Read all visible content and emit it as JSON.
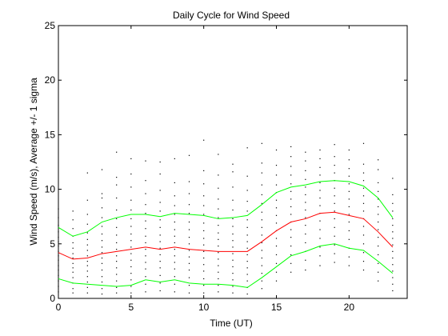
{
  "chart_data": {
    "type": "line",
    "title": "Daily Cycle for Wind Speed",
    "xlabel": "Time (UT)",
    "ylabel": "Wind Speed (m/s), Average +/- 1 sigma",
    "xlim": [
      0,
      24
    ],
    "ylim": [
      0,
      25
    ],
    "x_ticks": [
      0,
      5,
      10,
      15,
      20
    ],
    "y_ticks": [
      0,
      5,
      10,
      15,
      20,
      25
    ],
    "grid": false,
    "legend": "none",
    "x": [
      0,
      1,
      2,
      3,
      4,
      5,
      6,
      7,
      8,
      9,
      10,
      11,
      12,
      13,
      14,
      15,
      16,
      17,
      18,
      19,
      20,
      21,
      22,
      23
    ],
    "series": [
      {
        "role": "plus-1-sigma",
        "color": "#00ff00",
        "values": [
          6.5,
          5.7,
          6.1,
          7.0,
          7.4,
          7.7,
          7.7,
          7.5,
          7.8,
          7.7,
          7.6,
          7.3,
          7.4,
          7.6,
          8.6,
          9.7,
          10.2,
          10.4,
          10.7,
          10.8,
          10.7,
          10.3,
          9.2,
          7.4
        ]
      },
      {
        "role": "average",
        "color": "#ff0000",
        "values": [
          4.2,
          3.6,
          3.7,
          4.1,
          4.3,
          4.5,
          4.7,
          4.5,
          4.7,
          4.5,
          4.4,
          4.3,
          4.3,
          4.3,
          5.2,
          6.2,
          7.0,
          7.3,
          7.8,
          7.9,
          7.6,
          7.3,
          6.1,
          4.7
        ]
      },
      {
        "role": "minus-1-sigma",
        "color": "#00ff00",
        "values": [
          1.8,
          1.4,
          1.3,
          1.2,
          1.1,
          1.2,
          1.7,
          1.5,
          1.7,
          1.4,
          1.3,
          1.3,
          1.2,
          1.0,
          1.9,
          2.9,
          3.9,
          4.3,
          4.8,
          5.0,
          4.6,
          4.4,
          3.4,
          2.3
        ]
      }
    ],
    "scatter_color": "#000000",
    "scatter_points": [
      [
        0,
        0.6
      ],
      [
        0,
        1.1
      ],
      [
        0,
        1.6
      ],
      [
        0,
        2.1
      ],
      [
        0,
        2.6
      ],
      [
        0,
        3.0
      ],
      [
        0,
        3.5
      ],
      [
        0,
        3.9
      ],
      [
        0,
        4.3
      ],
      [
        0,
        4.8
      ],
      [
        0,
        5.2
      ],
      [
        0,
        5.6
      ],
      [
        0,
        6.1
      ],
      [
        0,
        6.7
      ],
      [
        0,
        7.4
      ],
      [
        0,
        8.2
      ],
      [
        1,
        0.5
      ],
      [
        1,
        0.9
      ],
      [
        1,
        1.4
      ],
      [
        1,
        1.9
      ],
      [
        1,
        2.4
      ],
      [
        1,
        2.8
      ],
      [
        1,
        3.2
      ],
      [
        1,
        3.7
      ],
      [
        1,
        4.1
      ],
      [
        1,
        4.6
      ],
      [
        1,
        5.1
      ],
      [
        1,
        5.7
      ],
      [
        1,
        6.4
      ],
      [
        1,
        7.2
      ],
      [
        1,
        8.0
      ],
      [
        2,
        0.5
      ],
      [
        2,
        1.0
      ],
      [
        2,
        1.5
      ],
      [
        2,
        2.0
      ],
      [
        2,
        2.5
      ],
      [
        2,
        3.0
      ],
      [
        2,
        3.4
      ],
      [
        2,
        3.9
      ],
      [
        2,
        4.4
      ],
      [
        2,
        4.9
      ],
      [
        2,
        5.4
      ],
      [
        2,
        6.0
      ],
      [
        2,
        6.8
      ],
      [
        2,
        7.7
      ],
      [
        2,
        9.0
      ],
      [
        2,
        11.5
      ],
      [
        3,
        0.4
      ],
      [
        3,
        0.9
      ],
      [
        3,
        1.5
      ],
      [
        3,
        2.0
      ],
      [
        3,
        2.6
      ],
      [
        3,
        3.2
      ],
      [
        3,
        3.7
      ],
      [
        3,
        4.2
      ],
      [
        3,
        4.7
      ],
      [
        3,
        5.3
      ],
      [
        3,
        5.9
      ],
      [
        3,
        6.6
      ],
      [
        3,
        7.4
      ],
      [
        3,
        8.3
      ],
      [
        3,
        9.2
      ],
      [
        3,
        9.6
      ],
      [
        3,
        11.8
      ],
      [
        4,
        0.5
      ],
      [
        4,
        1.0
      ],
      [
        4,
        1.6
      ],
      [
        4,
        2.2
      ],
      [
        4,
        2.8
      ],
      [
        4,
        3.4
      ],
      [
        4,
        3.9
      ],
      [
        4,
        4.5
      ],
      [
        4,
        5.1
      ],
      [
        4,
        5.8
      ],
      [
        4,
        6.5
      ],
      [
        4,
        7.3
      ],
      [
        4,
        8.1
      ],
      [
        4,
        9.2
      ],
      [
        4,
        10.4
      ],
      [
        4,
        11.1
      ],
      [
        4,
        13.4
      ],
      [
        5,
        0.5
      ],
      [
        5,
        1.1
      ],
      [
        5,
        1.7
      ],
      [
        5,
        2.3
      ],
      [
        5,
        2.9
      ],
      [
        5,
        3.5
      ],
      [
        5,
        4.1
      ],
      [
        5,
        4.7
      ],
      [
        5,
        5.3
      ],
      [
        5,
        5.9
      ],
      [
        5,
        6.6
      ],
      [
        5,
        7.3
      ],
      [
        5,
        8.1
      ],
      [
        5,
        9.0
      ],
      [
        5,
        10.2
      ],
      [
        5,
        11.4
      ],
      [
        5,
        12.8
      ],
      [
        6,
        0.6
      ],
      [
        6,
        1.3
      ],
      [
        6,
        2.0
      ],
      [
        6,
        2.7
      ],
      [
        6,
        3.3
      ],
      [
        6,
        3.9
      ],
      [
        6,
        4.5
      ],
      [
        6,
        5.1
      ],
      [
        6,
        5.7
      ],
      [
        6,
        6.4
      ],
      [
        6,
        7.1
      ],
      [
        6,
        7.8
      ],
      [
        6,
        8.6
      ],
      [
        6,
        9.6
      ],
      [
        6,
        10.8
      ],
      [
        6,
        12.6
      ],
      [
        7,
        0.7
      ],
      [
        7,
        1.4
      ],
      [
        7,
        2.1
      ],
      [
        7,
        2.8
      ],
      [
        7,
        3.4
      ],
      [
        7,
        4.0
      ],
      [
        7,
        4.6
      ],
      [
        7,
        5.2
      ],
      [
        7,
        5.8
      ],
      [
        7,
        6.5
      ],
      [
        7,
        7.2
      ],
      [
        7,
        8.0
      ],
      [
        7,
        8.8
      ],
      [
        7,
        9.9
      ],
      [
        7,
        11.4
      ],
      [
        7,
        12.5
      ],
      [
        8,
        0.6
      ],
      [
        8,
        1.3
      ],
      [
        8,
        2.0
      ],
      [
        8,
        2.7
      ],
      [
        8,
        3.3
      ],
      [
        8,
        3.9
      ],
      [
        8,
        4.5
      ],
      [
        8,
        5.1
      ],
      [
        8,
        5.7
      ],
      [
        8,
        6.3
      ],
      [
        8,
        7.0
      ],
      [
        8,
        7.7
      ],
      [
        8,
        8.5
      ],
      [
        8,
        9.4
      ],
      [
        8,
        10.6
      ],
      [
        8,
        12.8
      ],
      [
        9,
        0.5
      ],
      [
        9,
        1.2
      ],
      [
        9,
        1.9
      ],
      [
        9,
        2.6
      ],
      [
        9,
        3.2
      ],
      [
        9,
        3.8
      ],
      [
        9,
        4.4
      ],
      [
        9,
        5.0
      ],
      [
        9,
        5.6
      ],
      [
        9,
        6.3
      ],
      [
        9,
        7.0
      ],
      [
        9,
        7.8
      ],
      [
        9,
        8.6
      ],
      [
        9,
        9.6
      ],
      [
        9,
        10.7
      ],
      [
        9,
        13.1
      ],
      [
        10,
        0.5
      ],
      [
        10,
        1.2
      ],
      [
        10,
        1.8
      ],
      [
        10,
        2.5
      ],
      [
        10,
        3.1
      ],
      [
        10,
        3.7
      ],
      [
        10,
        4.3
      ],
      [
        10,
        4.9
      ],
      [
        10,
        5.5
      ],
      [
        10,
        6.2
      ],
      [
        10,
        6.9
      ],
      [
        10,
        7.7
      ],
      [
        10,
        8.5
      ],
      [
        10,
        9.4
      ],
      [
        10,
        10.5
      ],
      [
        10,
        11.7
      ],
      [
        10,
        14.5
      ],
      [
        11,
        0.6
      ],
      [
        11,
        1.2
      ],
      [
        11,
        1.8
      ],
      [
        11,
        2.4
      ],
      [
        11,
        3.0
      ],
      [
        11,
        3.6
      ],
      [
        11,
        4.2
      ],
      [
        11,
        4.8
      ],
      [
        11,
        5.4
      ],
      [
        11,
        6.0
      ],
      [
        11,
        6.7
      ],
      [
        11,
        7.4
      ],
      [
        11,
        8.2
      ],
      [
        11,
        9.1
      ],
      [
        11,
        10.1
      ],
      [
        11,
        11.3
      ],
      [
        11,
        13.2
      ],
      [
        12,
        0.5
      ],
      [
        12,
        1.1
      ],
      [
        12,
        1.7
      ],
      [
        12,
        2.3
      ],
      [
        12,
        2.9
      ],
      [
        12,
        3.5
      ],
      [
        12,
        4.1
      ],
      [
        12,
        4.7
      ],
      [
        12,
        5.3
      ],
      [
        12,
        5.9
      ],
      [
        12,
        6.6
      ],
      [
        12,
        7.3
      ],
      [
        12,
        8.1
      ],
      [
        12,
        9.0
      ],
      [
        12,
        10.2
      ],
      [
        12,
        11.6
      ],
      [
        12,
        12.3
      ],
      [
        13,
        0.4
      ],
      [
        13,
        1.0
      ],
      [
        13,
        1.6
      ],
      [
        13,
        2.2
      ],
      [
        13,
        2.8
      ],
      [
        13,
        3.4
      ],
      [
        13,
        4.0
      ],
      [
        13,
        4.6
      ],
      [
        13,
        5.2
      ],
      [
        13,
        5.8
      ],
      [
        13,
        6.5
      ],
      [
        13,
        7.2
      ],
      [
        13,
        8.0
      ],
      [
        13,
        8.9
      ],
      [
        13,
        9.9
      ],
      [
        13,
        11.2
      ],
      [
        13,
        13.8
      ],
      [
        14,
        0.9
      ],
      [
        14,
        1.6
      ],
      [
        14,
        2.3
      ],
      [
        14,
        3.0
      ],
      [
        14,
        3.7
      ],
      [
        14,
        4.4
      ],
      [
        14,
        5.1
      ],
      [
        14,
        5.8
      ],
      [
        14,
        6.5
      ],
      [
        14,
        7.2
      ],
      [
        14,
        7.9
      ],
      [
        14,
        8.7
      ],
      [
        14,
        9.5
      ],
      [
        14,
        10.4
      ],
      [
        14,
        11.5
      ],
      [
        14,
        12.4
      ],
      [
        14,
        14.2
      ],
      [
        15,
        1.6
      ],
      [
        15,
        2.4
      ],
      [
        15,
        3.2
      ],
      [
        15,
        4.0
      ],
      [
        15,
        4.8
      ],
      [
        15,
        5.5
      ],
      [
        15,
        6.2
      ],
      [
        15,
        6.9
      ],
      [
        15,
        7.6
      ],
      [
        15,
        8.3
      ],
      [
        15,
        9.0
      ],
      [
        15,
        9.7
      ],
      [
        15,
        10.4
      ],
      [
        15,
        11.3
      ],
      [
        15,
        12.2
      ],
      [
        15,
        13.6
      ],
      [
        16,
        2.4
      ],
      [
        16,
        3.2
      ],
      [
        16,
        4.0
      ],
      [
        16,
        4.8
      ],
      [
        16,
        5.6
      ],
      [
        16,
        6.3
      ],
      [
        16,
        7.0
      ],
      [
        16,
        7.7
      ],
      [
        16,
        8.4
      ],
      [
        16,
        9.1
      ],
      [
        16,
        9.8
      ],
      [
        16,
        10.5
      ],
      [
        16,
        11.3
      ],
      [
        16,
        12.1
      ],
      [
        16,
        13.0
      ],
      [
        16,
        13.9
      ],
      [
        17,
        2.6
      ],
      [
        17,
        3.5
      ],
      [
        17,
        4.3
      ],
      [
        17,
        5.1
      ],
      [
        17,
        5.9
      ],
      [
        17,
        6.7
      ],
      [
        17,
        7.4
      ],
      [
        17,
        8.1
      ],
      [
        17,
        8.8
      ],
      [
        17,
        9.5
      ],
      [
        17,
        10.2
      ],
      [
        17,
        10.9
      ],
      [
        17,
        11.7
      ],
      [
        17,
        12.6
      ],
      [
        17,
        13.4
      ],
      [
        18,
        3.0
      ],
      [
        18,
        3.9
      ],
      [
        18,
        4.7
      ],
      [
        18,
        5.5
      ],
      [
        18,
        6.3
      ],
      [
        18,
        7.1
      ],
      [
        18,
        7.8
      ],
      [
        18,
        8.5
      ],
      [
        18,
        9.2
      ],
      [
        18,
        9.9
      ],
      [
        18,
        10.6
      ],
      [
        18,
        11.3
      ],
      [
        18,
        12.0
      ],
      [
        18,
        12.8
      ],
      [
        18,
        13.6
      ],
      [
        19,
        3.3
      ],
      [
        19,
        4.1
      ],
      [
        19,
        4.9
      ],
      [
        19,
        5.7
      ],
      [
        19,
        6.5
      ],
      [
        19,
        7.3
      ],
      [
        19,
        8.0
      ],
      [
        19,
        8.7
      ],
      [
        19,
        9.4
      ],
      [
        19,
        10.1
      ],
      [
        19,
        10.8
      ],
      [
        19,
        11.5
      ],
      [
        19,
        12.2
      ],
      [
        19,
        13.0
      ],
      [
        19,
        14.1
      ],
      [
        20,
        3.0
      ],
      [
        20,
        3.8
      ],
      [
        20,
        4.6
      ],
      [
        20,
        5.4
      ],
      [
        20,
        6.2
      ],
      [
        20,
        7.0
      ],
      [
        20,
        7.7
      ],
      [
        20,
        8.4
      ],
      [
        20,
        9.1
      ],
      [
        20,
        9.8
      ],
      [
        20,
        10.5
      ],
      [
        20,
        11.2
      ],
      [
        20,
        11.9
      ],
      [
        20,
        12.7
      ],
      [
        20,
        13.6
      ],
      [
        21,
        2.6
      ],
      [
        21,
        3.4
      ],
      [
        21,
        4.2
      ],
      [
        21,
        5.0
      ],
      [
        21,
        5.8
      ],
      [
        21,
        6.6
      ],
      [
        21,
        7.3
      ],
      [
        21,
        8.0
      ],
      [
        21,
        8.7
      ],
      [
        21,
        9.4
      ],
      [
        21,
        10.1
      ],
      [
        21,
        10.8
      ],
      [
        21,
        11.5
      ],
      [
        21,
        12.3
      ],
      [
        21,
        14.2
      ],
      [
        22,
        1.6
      ],
      [
        22,
        2.4
      ],
      [
        22,
        3.2
      ],
      [
        22,
        4.0
      ],
      [
        22,
        4.8
      ],
      [
        22,
        5.6
      ],
      [
        22,
        6.3
      ],
      [
        22,
        7.0
      ],
      [
        22,
        7.7
      ],
      [
        22,
        8.4
      ],
      [
        22,
        9.1
      ],
      [
        22,
        9.8
      ],
      [
        22,
        10.6
      ],
      [
        22,
        11.8
      ],
      [
        22,
        12.7
      ],
      [
        23,
        0.7
      ],
      [
        23,
        1.3
      ],
      [
        23,
        1.9
      ],
      [
        23,
        2.5
      ],
      [
        23,
        3.1
      ],
      [
        23,
        3.7
      ],
      [
        23,
        4.3
      ],
      [
        23,
        4.9
      ],
      [
        23,
        5.5
      ],
      [
        23,
        6.1
      ],
      [
        23,
        6.7
      ],
      [
        23,
        7.3
      ],
      [
        23,
        8.0
      ],
      [
        23,
        8.7
      ],
      [
        23,
        9.5
      ],
      [
        23,
        11.0
      ]
    ]
  }
}
